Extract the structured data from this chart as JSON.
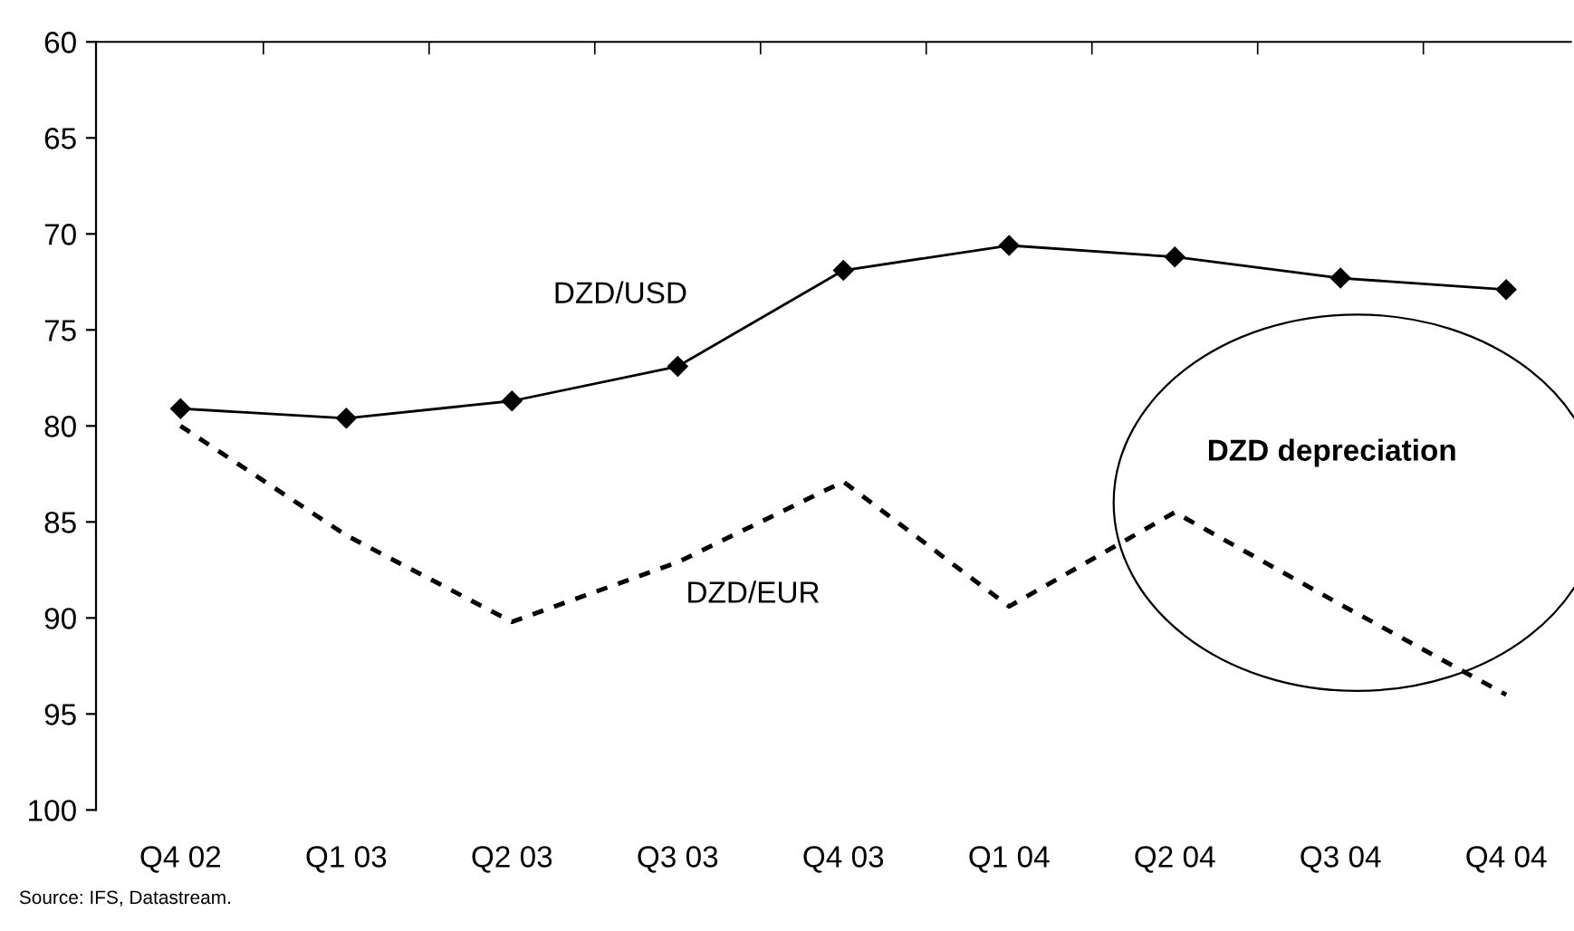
{
  "chart_data": {
    "type": "line",
    "categories": [
      "Q4 02",
      "Q1 03",
      "Q2 03",
      "Q3 03",
      "Q4 03",
      "Q1 04",
      "Q2 04",
      "Q3 04",
      "Q4 04"
    ],
    "series": [
      {
        "name": "DZD/USD",
        "color": "#000000",
        "marker": "diamond",
        "line_style": "solid",
        "values": [
          79.1,
          79.6,
          78.7,
          76.9,
          71.9,
          70.6,
          71.2,
          72.3,
          72.9
        ]
      },
      {
        "name": "DZD/EUR",
        "color": "#000000",
        "marker": "none",
        "line_style": "dotted",
        "values": [
          80.0,
          85.7,
          90.2,
          87.1,
          82.9,
          89.4,
          84.5,
          89.3,
          94.0
        ]
      }
    ],
    "ylim": [
      100,
      60
    ],
    "yticks": [
      60,
      65,
      70,
      75,
      80,
      85,
      90,
      95,
      100
    ],
    "grid": false,
    "legend": false,
    "annotations": [
      "DZD depreciation",
      "Source: IFS, Datastream."
    ]
  }
}
